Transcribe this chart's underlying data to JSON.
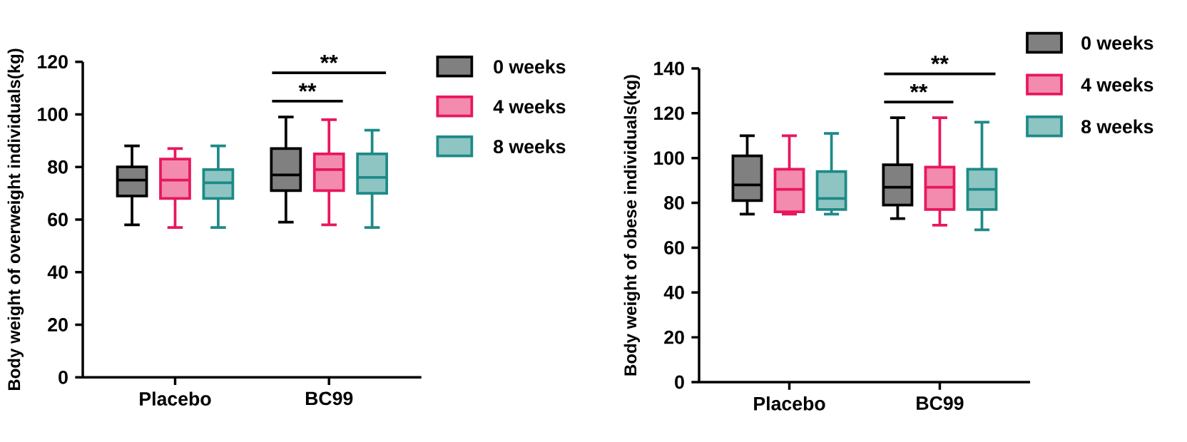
{
  "chart_data": [
    {
      "type": "box",
      "ylabel": "Body weight of overweight individuals(kg)",
      "categories": [
        "Placebo",
        "BC99"
      ],
      "ylim": [
        0,
        120
      ],
      "yticks": [
        0,
        20,
        40,
        60,
        80,
        100,
        120
      ],
      "legend": "top right",
      "series": [
        {
          "name": "0 weeks",
          "color": "#000000",
          "boxes": [
            {
              "low": 58,
              "q1": 69,
              "median": 75,
              "q3": 80,
              "high": 88
            },
            {
              "low": 59,
              "q1": 71,
              "median": 77,
              "q3": 87,
              "high": 99
            }
          ]
        },
        {
          "name": "4 weeks",
          "color": "#e8175d",
          "boxes": [
            {
              "low": 57,
              "q1": 68,
              "median": 75,
              "q3": 83,
              "high": 87
            },
            {
              "low": 58,
              "q1": 71,
              "median": 79,
              "q3": 85,
              "high": 98
            }
          ]
        },
        {
          "name": "8 weeks",
          "color": "#1e8a87",
          "boxes": [
            {
              "low": 57,
              "q1": 68,
              "median": 74,
              "q3": 79,
              "high": 88
            },
            {
              "low": 57,
              "q1": 70,
              "median": 76,
              "q3": 85,
              "high": 94
            }
          ]
        }
      ],
      "annotations": [
        "**",
        "**"
      ]
    },
    {
      "type": "box",
      "ylabel": "Body weight of obese individuals(kg)",
      "categories": [
        "Placebo",
        "BC99"
      ],
      "ylim": [
        0,
        140
      ],
      "yticks": [
        0,
        20,
        40,
        60,
        80,
        100,
        120,
        140
      ],
      "legend": "top right",
      "series": [
        {
          "name": "0 weeks",
          "color": "#000000",
          "boxes": [
            {
              "low": 75,
              "q1": 81,
              "median": 88,
              "q3": 101,
              "high": 110
            },
            {
              "low": 73,
              "q1": 79,
              "median": 87,
              "q3": 97,
              "high": 118
            }
          ]
        },
        {
          "name": "4 weeks",
          "color": "#e8175d",
          "boxes": [
            {
              "low": 75,
              "q1": 76,
              "median": 86,
              "q3": 95,
              "high": 110
            },
            {
              "low": 70,
              "q1": 77,
              "median": 87,
              "q3": 96,
              "high": 118
            }
          ]
        },
        {
          "name": "8 weeks",
          "color": "#1e8a87",
          "boxes": [
            {
              "low": 75,
              "q1": 77,
              "median": 82,
              "q3": 94,
              "high": 111
            },
            {
              "low": 68,
              "q1": 77,
              "median": 86,
              "q3": 95,
              "high": 116
            }
          ]
        }
      ],
      "annotations": [
        "**",
        "**"
      ]
    }
  ]
}
